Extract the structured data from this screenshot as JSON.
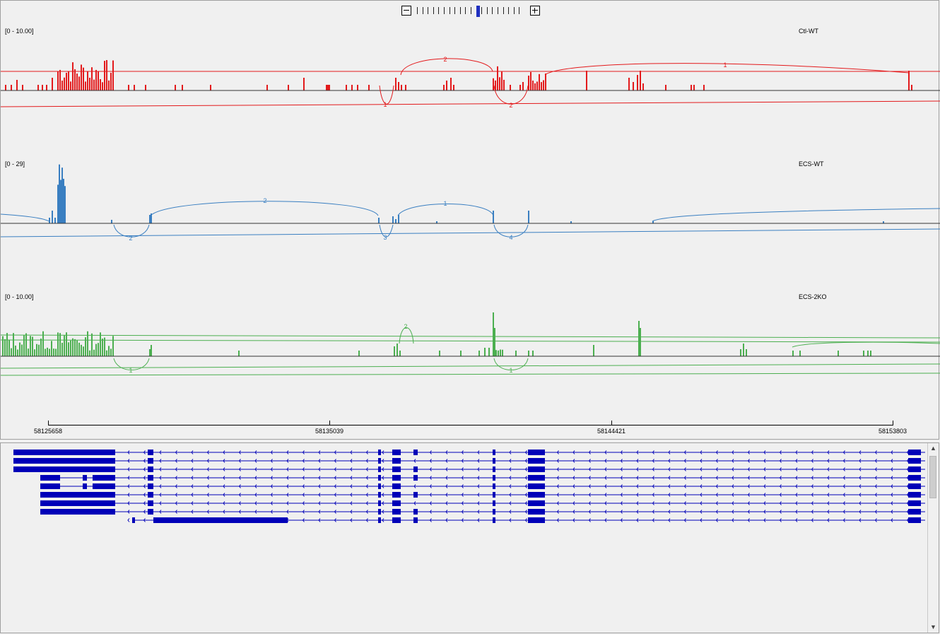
{
  "zoom": {
    "tick_count": 20,
    "active_index": 11,
    "zoom_out_label": "−",
    "zoom_in_label": "+"
  },
  "tracks": [
    {
      "id": "ctl-wt",
      "name": "Ctl-WT",
      "range_label": "[0 - 10.00]",
      "color": "#e31a1c",
      "junction_labels": [
        "2",
        "1",
        "1",
        "2"
      ]
    },
    {
      "id": "ecs-wt",
      "name": "ECS-WT",
      "range_label": "[0 - 29]",
      "color": "#3a7fc1",
      "junction_labels": [
        "2",
        "1",
        "2",
        "3",
        "4"
      ]
    },
    {
      "id": "ecs-2ko",
      "name": "ECS-2KO",
      "range_label": "[0 - 10.00]",
      "color": "#4caf50",
      "junction_labels": [
        "2",
        "1",
        "1"
      ]
    }
  ],
  "ruler": {
    "positions": [
      "58125658",
      "58135039",
      "58144421",
      "58153803"
    ]
  },
  "gene_panel": {
    "color": "#0000b8",
    "transcript_count": 9,
    "scroll_up_glyph": "▲",
    "scroll_down_glyph": "▼"
  }
}
